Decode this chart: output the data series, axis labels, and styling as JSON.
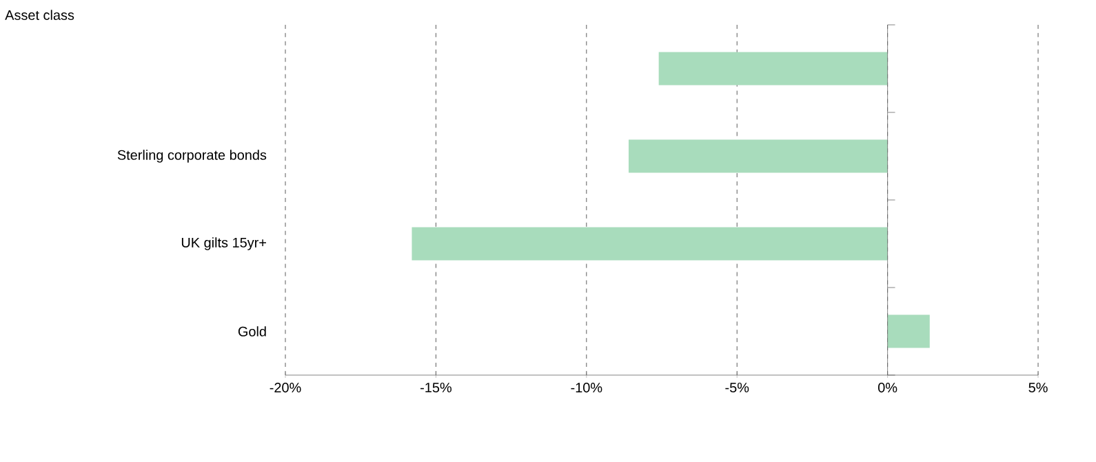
{
  "chart_data": {
    "type": "bar",
    "orientation": "horizontal",
    "ylabel": "Asset class",
    "categories": [
      null,
      "Sterling corporate bonds",
      "UK gilts 15yr+",
      "Gold"
    ],
    "values": [
      -7.6,
      -8.6,
      -15.8,
      1.4
    ],
    "color": "#a8dcbc",
    "xlim": [
      -20,
      5
    ],
    "xticks": [
      {
        "value": -20,
        "label": "-20%"
      },
      {
        "value": -15,
        "label": "-15%"
      },
      {
        "value": -10,
        "label": "-10%"
      },
      {
        "value": -5,
        "label": "-5%"
      },
      {
        "value": 0,
        "label": "0%"
      },
      {
        "value": 5,
        "label": "5%"
      }
    ],
    "grid": "x"
  }
}
